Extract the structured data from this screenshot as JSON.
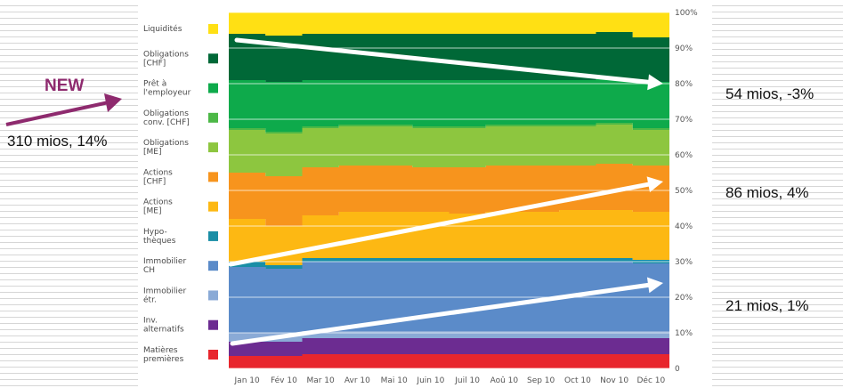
{
  "chart_data": {
    "type": "area",
    "stacked": true,
    "percent": true,
    "categories": [
      "Jan 10",
      "Fév 10",
      "Mar 10",
      "Avr 10",
      "Mai 10",
      "Juin 10",
      "Juil 10",
      "Aoû 10",
      "Sep 10",
      "Oct 10",
      "Nov 10",
      "Déc 10"
    ],
    "ylim": [
      0,
      100
    ],
    "yticks": [
      "0",
      "10%",
      "20%",
      "30%",
      "40%",
      "50%",
      "60%",
      "70%",
      "80%",
      "90%",
      "100%"
    ],
    "grid": true,
    "legend_position": "left",
    "series": [
      {
        "name": "Matières premières",
        "lines": [
          "Matières",
          "premières"
        ],
        "color": "#e8262d",
        "values": [
          3.5,
          3.5,
          4,
          4,
          4,
          4,
          4,
          4,
          4,
          4,
          4,
          4
        ]
      },
      {
        "name": "Inv. alternatifs",
        "lines": [
          "Inv.",
          "alternatifs"
        ],
        "color": "#6c2c91",
        "values": [
          4,
          4,
          4.5,
          4.5,
          4.5,
          4.5,
          4.5,
          4.5,
          4.5,
          4.5,
          4.5,
          4.5
        ]
      },
      {
        "name": "Immobilier étr.",
        "lines": [
          "Immobilier",
          "étr."
        ],
        "color": "#8aaad6",
        "values": [
          2.5,
          2.5,
          2,
          2,
          2,
          2,
          2,
          2,
          2,
          2,
          2,
          2
        ]
      },
      {
        "name": "Immobilier CH",
        "lines": [
          "Immobilier",
          "CH"
        ],
        "color": "#5b8bc9",
        "values": [
          18.5,
          18,
          19.5,
          19.5,
          19.5,
          19.5,
          19.5,
          19.5,
          19.5,
          19.5,
          19.5,
          19
        ]
      },
      {
        "name": "Hypothèques",
        "lines": [
          "Hypo-",
          "thèques"
        ],
        "color": "#1a8ea6",
        "values": [
          1.5,
          1,
          1,
          1,
          1,
          1,
          1,
          1,
          1,
          1,
          1,
          1
        ]
      },
      {
        "name": "Actions [ME]",
        "lines": [
          "Actions",
          "[ME]"
        ],
        "color": "#fdb813",
        "values": [
          12,
          11,
          12,
          13,
          13,
          13,
          12.5,
          13,
          13,
          13.5,
          13.5,
          13.5
        ]
      },
      {
        "name": "Actions [CHF]",
        "lines": [
          "Actions",
          "[CHF]"
        ],
        "color": "#f7941d",
        "values": [
          13,
          14,
          13.5,
          13,
          13,
          12.5,
          13,
          13,
          13,
          12.5,
          13,
          13
        ]
      },
      {
        "name": "Obligations [ME]",
        "lines": [
          "Obligations",
          "[ME]"
        ],
        "color": "#8dc63f",
        "values": [
          12,
          12,
          11,
          11,
          11,
          11,
          11,
          11,
          11,
          11,
          11,
          10
        ]
      },
      {
        "name": "Obligations conv. [CHF]",
        "lines": [
          "Obligations",
          "conv. [CHF]"
        ],
        "color": "#4cb847",
        "values": [
          0.5,
          0.5,
          0.5,
          0.5,
          0.5,
          0.5,
          0.5,
          0.5,
          0.5,
          0.5,
          0.5,
          0.5
        ]
      },
      {
        "name": "Prêt à l'employeur",
        "lines": [
          "Prêt à",
          "l'employeur"
        ],
        "color": "#0eaa4b",
        "values": [
          13.5,
          14,
          13,
          12.5,
          12.5,
          13,
          13,
          12.5,
          12.5,
          12.5,
          12.5,
          13
        ]
      },
      {
        "name": "Obligations [CHF]",
        "lines": [
          "Obligations",
          "[CHF]"
        ],
        "color": "#006837",
        "values": [
          13,
          13,
          13,
          13,
          13,
          13,
          13,
          13,
          13,
          13,
          13,
          12.5
        ]
      },
      {
        "name": "Liquidités",
        "lines": [
          "Liquidités"
        ],
        "color": "#ffe014",
        "values": [
          6,
          6.5,
          6,
          6,
          6,
          6,
          6,
          6,
          6,
          6,
          5.5,
          7
        ]
      }
    ],
    "annotations": {
      "new_label": "NEW",
      "left_note": "310 mios, 14%",
      "right_notes": [
        "54 mios, -3%",
        "86 mios, 4%",
        "21 mios, 1%"
      ]
    }
  }
}
